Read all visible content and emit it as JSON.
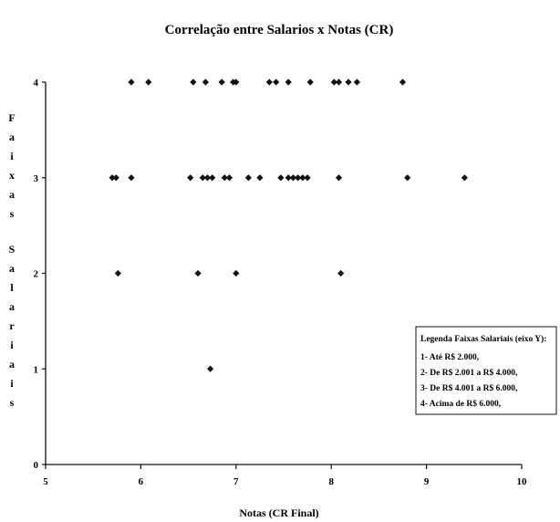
{
  "chart_data": {
    "type": "scatter",
    "title": "Correlação entre Salarios x Notas (CR)",
    "xlabel": "Notas (CR Final)",
    "ylabel": "Faixas Salariais",
    "xlim": [
      5,
      10
    ],
    "ylim": [
      0,
      4
    ],
    "xticks": [
      "5",
      "6",
      "7",
      "8",
      "9",
      "10"
    ],
    "yticks": [
      "0",
      "1",
      "2",
      "3",
      "4"
    ],
    "marker_color": "#111111",
    "grid": false,
    "legend_placement": "bottom-right",
    "legend": {
      "title": "Legenda Faixas Salariais (eixo Y):",
      "items": [
        "1- Até R$ 2.000,",
        "2- De R$ 2.001 a R$ 4.000,",
        "3- De R$ 4.001 a R$ 6.000,",
        "4- Acima de R$ 6.000,"
      ]
    },
    "points": [
      {
        "x": 5.9,
        "y": 4
      },
      {
        "x": 6.08,
        "y": 4
      },
      {
        "x": 6.55,
        "y": 4
      },
      {
        "x": 6.68,
        "y": 4
      },
      {
        "x": 6.85,
        "y": 4
      },
      {
        "x": 6.97,
        "y": 4
      },
      {
        "x": 7.0,
        "y": 4
      },
      {
        "x": 7.35,
        "y": 4
      },
      {
        "x": 7.42,
        "y": 4
      },
      {
        "x": 7.55,
        "y": 4
      },
      {
        "x": 7.78,
        "y": 4
      },
      {
        "x": 8.03,
        "y": 4
      },
      {
        "x": 8.08,
        "y": 4
      },
      {
        "x": 8.18,
        "y": 4
      },
      {
        "x": 8.27,
        "y": 4
      },
      {
        "x": 8.75,
        "y": 4
      },
      {
        "x": 5.7,
        "y": 3
      },
      {
        "x": 5.74,
        "y": 3
      },
      {
        "x": 5.9,
        "y": 3
      },
      {
        "x": 6.52,
        "y": 3
      },
      {
        "x": 6.65,
        "y": 3
      },
      {
        "x": 6.7,
        "y": 3
      },
      {
        "x": 6.75,
        "y": 3
      },
      {
        "x": 6.88,
        "y": 3
      },
      {
        "x": 6.93,
        "y": 3
      },
      {
        "x": 7.13,
        "y": 3
      },
      {
        "x": 7.25,
        "y": 3
      },
      {
        "x": 7.47,
        "y": 3
      },
      {
        "x": 7.55,
        "y": 3
      },
      {
        "x": 7.6,
        "y": 3
      },
      {
        "x": 7.65,
        "y": 3
      },
      {
        "x": 7.7,
        "y": 3
      },
      {
        "x": 7.75,
        "y": 3
      },
      {
        "x": 8.08,
        "y": 3
      },
      {
        "x": 8.8,
        "y": 3
      },
      {
        "x": 9.4,
        "y": 3
      },
      {
        "x": 5.76,
        "y": 2
      },
      {
        "x": 6.6,
        "y": 2
      },
      {
        "x": 7.0,
        "y": 2
      },
      {
        "x": 8.1,
        "y": 2
      },
      {
        "x": 6.73,
        "y": 1
      }
    ]
  }
}
